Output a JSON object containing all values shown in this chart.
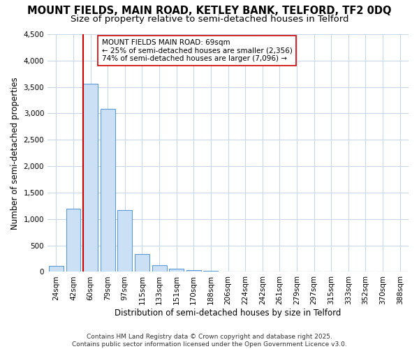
{
  "title": "MOUNT FIELDS, MAIN ROAD, KETLEY BANK, TELFORD, TF2 0DQ",
  "subtitle": "Size of property relative to semi-detached houses in Telford",
  "xlabel": "Distribution of semi-detached houses by size in Telford",
  "ylabel": "Number of semi-detached properties",
  "categories": [
    "24sqm",
    "42sqm",
    "60sqm",
    "79sqm",
    "97sqm",
    "115sqm",
    "133sqm",
    "151sqm",
    "170sqm",
    "188sqm",
    "206sqm",
    "224sqm",
    "242sqm",
    "261sqm",
    "279sqm",
    "297sqm",
    "315sqm",
    "333sqm",
    "352sqm",
    "370sqm",
    "388sqm"
  ],
  "values": [
    115,
    1200,
    3560,
    3090,
    1170,
    330,
    120,
    65,
    35,
    15,
    5,
    2,
    1,
    0,
    0,
    0,
    0,
    0,
    0,
    0,
    0
  ],
  "bar_color": "#cce0f5",
  "bar_edge_color": "#5b9bd5",
  "vline_color": "#cc0000",
  "annotation_text": "MOUNT FIELDS MAIN ROAD: 69sqm\n← 25% of semi-detached houses are smaller (2,356)\n74% of semi-detached houses are larger (7,096) →",
  "annotation_box_color": "#ffffff",
  "annotation_box_edge": "#cc0000",
  "ylim": [
    0,
    4500
  ],
  "yticks": [
    0,
    500,
    1000,
    1500,
    2000,
    2500,
    3000,
    3500,
    4000,
    4500
  ],
  "footnote": "Contains HM Land Registry data © Crown copyright and database right 2025.\nContains public sector information licensed under the Open Government Licence v3.0.",
  "bg_color": "#ffffff",
  "grid_color": "#c8d8e8",
  "title_fontsize": 10.5,
  "subtitle_fontsize": 9.5,
  "axis_label_fontsize": 8.5,
  "tick_fontsize": 7.5,
  "annotation_fontsize": 7.5,
  "footnote_fontsize": 6.5,
  "vline_index": 2
}
